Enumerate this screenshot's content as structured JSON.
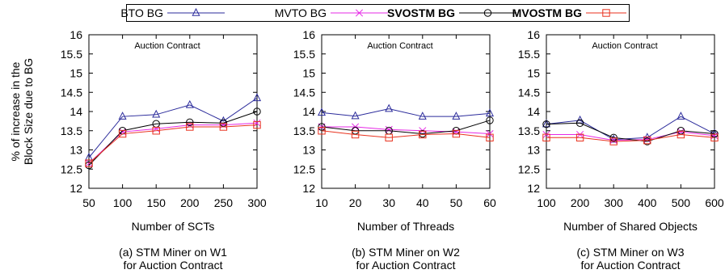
{
  "legend": {
    "items": [
      {
        "label": "BTO BG",
        "color": "#2b2b9b",
        "marker": "triangle",
        "bold": false
      },
      {
        "label": "MVTO BG",
        "color": "#e628e6",
        "marker": "x",
        "bold": false
      },
      {
        "label": "SVOSTM BG",
        "color": "#000000",
        "marker": "circle",
        "bold": true
      },
      {
        "label": "MVOSTM BG",
        "color": "#e8321e",
        "marker": "square",
        "bold": true
      }
    ]
  },
  "ylabel_lines": [
    "% of increase in the",
    "Block Size due to BG"
  ],
  "chart_data": [
    {
      "type": "line",
      "annotation": "Auction Contract",
      "xlabel": "Number of SCTs",
      "caption_lines": [
        "(a) STM Miner on W1",
        "for Auction Contract"
      ],
      "x": [
        50,
        100,
        150,
        200,
        250,
        300
      ],
      "ylim": [
        12,
        16
      ],
      "yticks": [
        "12",
        "12.5",
        "13",
        "13.5",
        "14",
        "14.5",
        "15",
        "15.5",
        "16"
      ],
      "series": [
        {
          "name": "BTO BG",
          "values": [
            12.8,
            13.87,
            13.92,
            14.17,
            13.75,
            14.35
          ]
        },
        {
          "name": "MVTO BG",
          "values": [
            12.65,
            13.47,
            13.55,
            13.65,
            13.65,
            13.7
          ]
        },
        {
          "name": "SVOSTM BG",
          "values": [
            12.6,
            13.5,
            13.68,
            13.72,
            13.7,
            14.0
          ]
        },
        {
          "name": "MVOSTM BG",
          "values": [
            12.65,
            13.42,
            13.5,
            13.6,
            13.6,
            13.65
          ]
        }
      ]
    },
    {
      "type": "line",
      "annotation": "Auction Contract",
      "xlabel": "Number of Threads",
      "caption_lines": [
        "(b) STM Miner on W2",
        "for Auction Contract"
      ],
      "x": [
        10,
        20,
        30,
        40,
        50,
        60
      ],
      "ylim": [
        12,
        16
      ],
      "yticks": [
        "12",
        "12.5",
        "13",
        "13.5",
        "14",
        "14.5",
        "15",
        "15.5",
        "16"
      ],
      "series": [
        {
          "name": "BTO BG",
          "values": [
            13.97,
            13.88,
            14.07,
            13.87,
            13.87,
            13.95
          ]
        },
        {
          "name": "MVTO BG",
          "values": [
            13.6,
            13.6,
            13.53,
            13.5,
            13.47,
            13.42
          ]
        },
        {
          "name": "SVOSTM BG",
          "values": [
            13.6,
            13.5,
            13.5,
            13.42,
            13.5,
            13.77
          ]
        },
        {
          "name": "MVOSTM BG",
          "values": [
            13.5,
            13.4,
            13.32,
            13.4,
            13.42,
            13.32
          ]
        }
      ]
    },
    {
      "type": "line",
      "annotation": "Auction Contract",
      "xlabel": "Number of Shared Objects",
      "caption_lines": [
        "(c) STM Miner on W3",
        "for Auction Contract"
      ],
      "x": [
        100,
        200,
        300,
        400,
        500,
        600
      ],
      "ylim": [
        12,
        16
      ],
      "yticks": [
        "12",
        "12.5",
        "13",
        "13.5",
        "14",
        "14.5",
        "15",
        "15.5",
        "16"
      ],
      "series": [
        {
          "name": "BTO BG",
          "values": [
            13.67,
            13.77,
            13.27,
            13.32,
            13.87,
            13.42
          ]
        },
        {
          "name": "MVTO BG",
          "values": [
            13.4,
            13.4,
            13.25,
            13.27,
            13.47,
            13.37
          ]
        },
        {
          "name": "SVOSTM BG",
          "values": [
            13.67,
            13.7,
            13.32,
            13.22,
            13.5,
            13.42
          ]
        },
        {
          "name": "MVOSTM BG",
          "values": [
            13.32,
            13.32,
            13.22,
            13.25,
            13.4,
            13.32
          ]
        }
      ]
    }
  ]
}
